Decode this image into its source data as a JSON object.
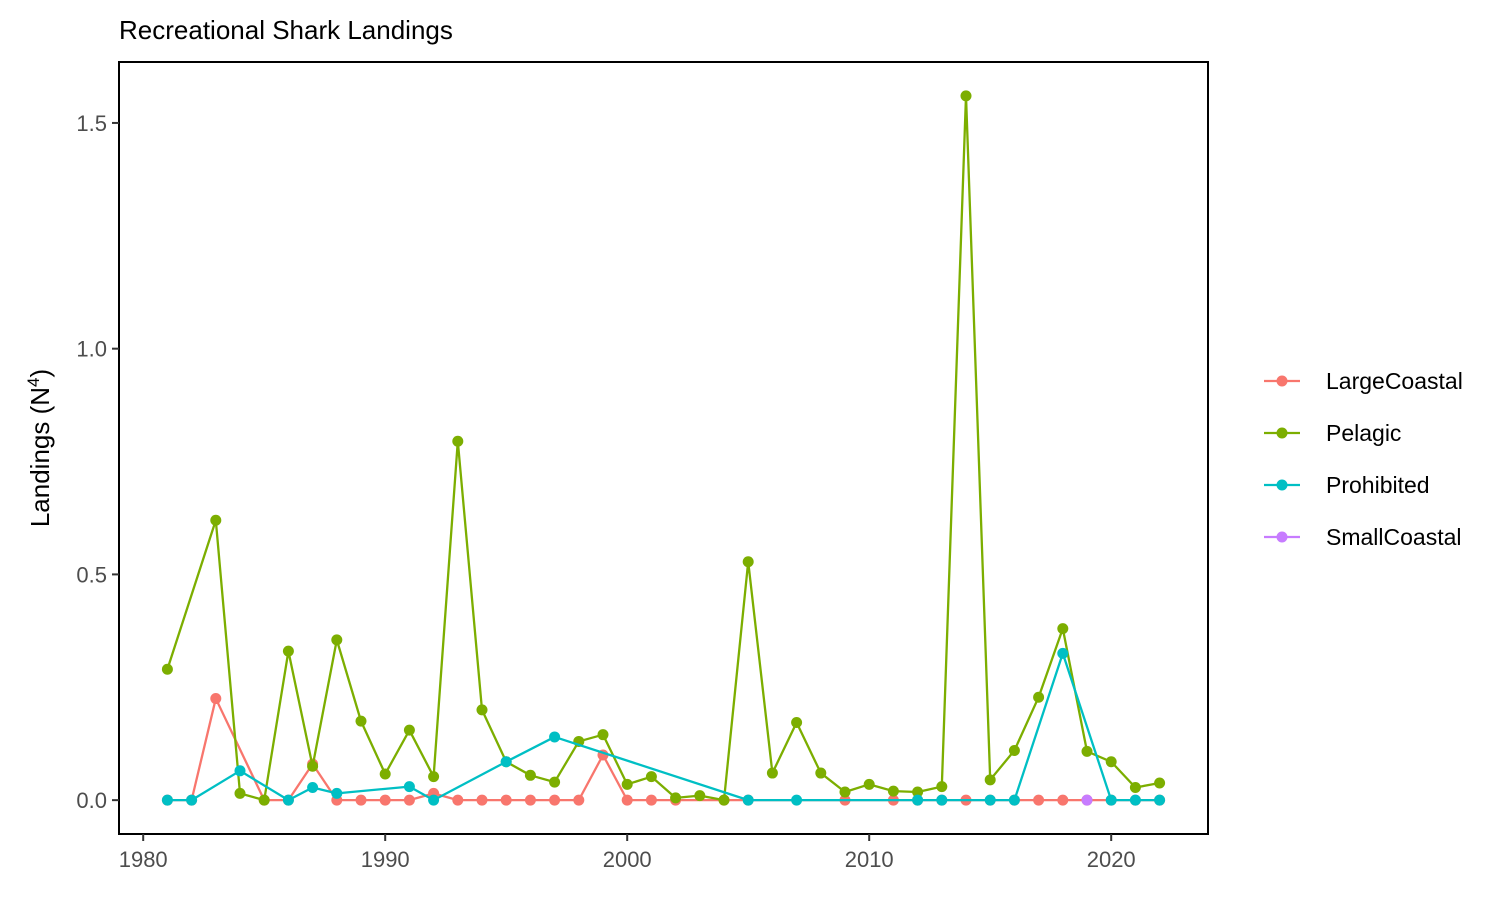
{
  "chart_data": {
    "type": "line",
    "title": "Recreational Shark Landings",
    "xlabel": "",
    "ylabel": "Landings (N",
    "ylabel_superscript": "4",
    "ylabel_suffix": ")",
    "xlim": [
      1979.0,
      2024.0
    ],
    "ylim": [
      -0.075,
      1.635
    ],
    "x_ticks": [
      1980,
      1990,
      2000,
      2010,
      2020
    ],
    "y_ticks": [
      0.0,
      0.5,
      1.0,
      1.5
    ],
    "y_tick_labels": [
      "0.0",
      "0.5",
      "1.0",
      "1.5"
    ],
    "grid": false,
    "legend_position": "right",
    "series": [
      {
        "name": "LargeCoastal",
        "color": "#F8766D",
        "points": [
          [
            1981,
            0.0
          ],
          [
            1982,
            0.0
          ],
          [
            1983,
            0.225
          ],
          [
            1985,
            0.0
          ],
          [
            1986,
            0.0
          ],
          [
            1987,
            0.08
          ],
          [
            1988,
            0.0
          ],
          [
            1989,
            0.0
          ],
          [
            1990,
            0.0
          ],
          [
            1991,
            0.0
          ],
          [
            1992,
            0.015
          ],
          [
            1993,
            0.0
          ],
          [
            1994,
            0.0
          ],
          [
            1995,
            0.0
          ],
          [
            1996,
            0.0
          ],
          [
            1997,
            0.0
          ],
          [
            1998,
            0.0
          ],
          [
            1999,
            0.1
          ],
          [
            2000,
            0.0
          ],
          [
            2001,
            0.0
          ],
          [
            2002,
            0.0
          ],
          [
            2004,
            0.0
          ],
          [
            2005,
            0.0
          ],
          [
            2009,
            0.0
          ],
          [
            2011,
            0.0
          ],
          [
            2012,
            0.0
          ],
          [
            2013,
            0.0
          ],
          [
            2014,
            0.0
          ],
          [
            2015,
            0.0
          ],
          [
            2016,
            0.0
          ],
          [
            2017,
            0.0
          ],
          [
            2018,
            0.0
          ],
          [
            2019,
            0.0
          ],
          [
            2020,
            0.0
          ],
          [
            2021,
            0.0
          ],
          [
            2022,
            0.0
          ]
        ]
      },
      {
        "name": "Pelagic",
        "color": "#7CAE00",
        "points": [
          [
            1981,
            0.29
          ],
          [
            1983,
            0.62
          ],
          [
            1984,
            0.015
          ],
          [
            1985,
            0.0
          ],
          [
            1986,
            0.33
          ],
          [
            1987,
            0.075
          ],
          [
            1988,
            0.355
          ],
          [
            1989,
            0.175
          ],
          [
            1990,
            0.058
          ],
          [
            1991,
            0.155
          ],
          [
            1992,
            0.052
          ],
          [
            1993,
            0.795
          ],
          [
            1994,
            0.2
          ],
          [
            1995,
            0.085
          ],
          [
            1996,
            0.055
          ],
          [
            1997,
            0.04
          ],
          [
            1998,
            0.13
          ],
          [
            1999,
            0.145
          ],
          [
            2000,
            0.035
          ],
          [
            2001,
            0.052
          ],
          [
            2002,
            0.005
          ],
          [
            2003,
            0.01
          ],
          [
            2004,
            0.0
          ],
          [
            2005,
            0.528
          ],
          [
            2006,
            0.06
          ],
          [
            2007,
            0.172
          ],
          [
            2008,
            0.06
          ],
          [
            2009,
            0.018
          ],
          [
            2010,
            0.035
          ],
          [
            2011,
            0.02
          ],
          [
            2012,
            0.018
          ],
          [
            2013,
            0.03
          ],
          [
            2014,
            1.56
          ],
          [
            2015,
            0.045
          ],
          [
            2016,
            0.11
          ],
          [
            2017,
            0.228
          ],
          [
            2018,
            0.38
          ],
          [
            2019,
            0.108
          ],
          [
            2020,
            0.085
          ],
          [
            2021,
            0.028
          ],
          [
            2022,
            0.038
          ]
        ]
      },
      {
        "name": "Prohibited",
        "color": "#00BFC4",
        "points": [
          [
            1981,
            0.0
          ],
          [
            1982,
            0.0
          ],
          [
            1984,
            0.065
          ],
          [
            1986,
            0.0
          ],
          [
            1987,
            0.028
          ],
          [
            1988,
            0.015
          ],
          [
            1991,
            0.03
          ],
          [
            1992,
            0.0
          ],
          [
            1995,
            0.085
          ],
          [
            1997,
            0.14
          ],
          [
            2005,
            0.0
          ],
          [
            2007,
            0.0
          ],
          [
            2012,
            0.0
          ],
          [
            2013,
            0.0
          ],
          [
            2015,
            0.0
          ],
          [
            2016,
            0.0
          ],
          [
            2018,
            0.325
          ],
          [
            2020,
            0.0
          ],
          [
            2021,
            0.0
          ],
          [
            2022,
            0.0
          ]
        ]
      },
      {
        "name": "SmallCoastal",
        "color": "#C77CFF",
        "points": [
          [
            2019,
            0.0
          ]
        ]
      }
    ]
  }
}
